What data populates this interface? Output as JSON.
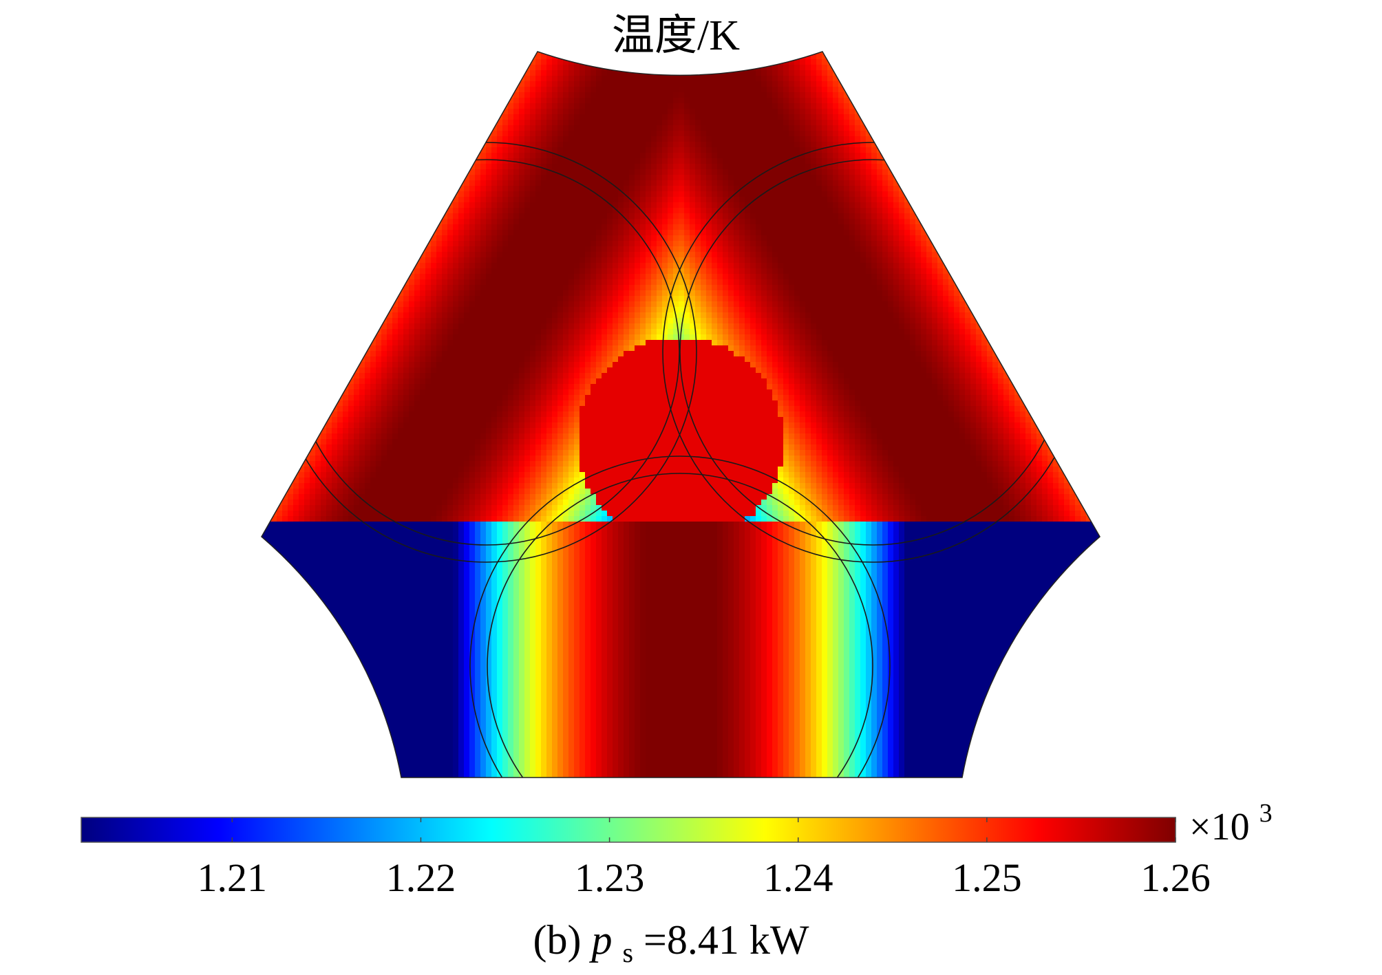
{
  "chart_data": {
    "type": "heatmap",
    "title": "温度/K",
    "colorbar": {
      "orientation": "horizontal",
      "placement": "bottom",
      "min": 1.202,
      "max": 1.26,
      "ticks": [
        "1.21",
        "1.22",
        "1.23",
        "1.24",
        "1.25",
        "1.26"
      ],
      "tick_values": [
        1.21,
        1.22,
        1.23,
        1.24,
        1.25,
        1.26
      ],
      "multiplier_base": "×10",
      "multiplier_exp": "3",
      "colormap": [
        "#00007f",
        "#0000ff",
        "#007fff",
        "#00ffff",
        "#7fff7f",
        "#ffff00",
        "#ff7f00",
        "#ff0000",
        "#7f0000"
      ]
    },
    "field": {
      "min_value": 1.202,
      "max_value": 1.26,
      "circles": 3
    },
    "grid": false
  },
  "caption": {
    "prefix": "(b) ",
    "var": "p",
    "sub": "s",
    "suffix": "=8.41 kW"
  }
}
